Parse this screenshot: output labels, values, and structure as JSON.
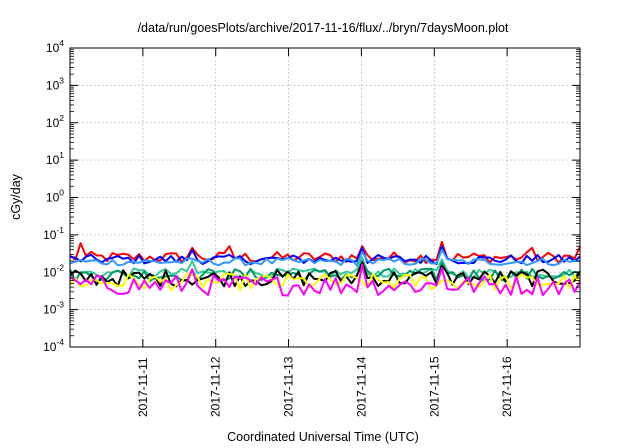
{
  "chart_data": {
    "type": "line",
    "title": "/data/run/goesPlots/archive/2017-11-16/flux/../bryn/7daysMoon.plot",
    "xlabel": "Coordinated Universal Time (UTC)",
    "ylabel": "cGy/day",
    "y_scale": "log",
    "ylim_exponent": [
      -4,
      4
    ],
    "y_ticks": [
      {
        "base": "10",
        "exp": "-4"
      },
      {
        "base": "10",
        "exp": "-3"
      },
      {
        "base": "10",
        "exp": "-2"
      },
      {
        "base": "10",
        "exp": "-1"
      },
      {
        "base": "10",
        "exp": "0"
      },
      {
        "base": "10",
        "exp": "1"
      },
      {
        "base": "10",
        "exp": "2"
      },
      {
        "base": "10",
        "exp": "3"
      },
      {
        "base": "10",
        "exp": "4"
      }
    ],
    "x_range_days": [
      "2017-11-10",
      "2017-11-17"
    ],
    "x_tick_labels": [
      "2017-11-11",
      "2017-11-12",
      "2017-11-13",
      "2017-11-14",
      "2017-11-15",
      "2017-11-16"
    ],
    "grid": true,
    "legend": "none",
    "samples_per_series": 97,
    "series": [
      {
        "color": "#ff0000",
        "level": 0.025,
        "jitter": 0.3,
        "spikes": [
          [
            2,
            0.06
          ],
          [
            23,
            0.045
          ],
          [
            30,
            0.05
          ],
          [
            55,
            0.05
          ],
          [
            70,
            0.065
          ],
          [
            87,
            0.045
          ],
          [
            96,
            0.05
          ]
        ]
      },
      {
        "color": "#0000ff",
        "level": 0.022,
        "jitter": 0.25,
        "spikes": [
          [
            23,
            0.04
          ],
          [
            55,
            0.045
          ],
          [
            70,
            0.05
          ]
        ]
      },
      {
        "color": "#3399ff",
        "level": 0.019,
        "jitter": 0.2,
        "spikes": [
          [
            55,
            0.035
          ],
          [
            70,
            0.04
          ]
        ]
      },
      {
        "color": "#33cc99",
        "level": 0.0095,
        "jitter": 0.25,
        "spikes": [
          [
            23,
            0.02
          ],
          [
            55,
            0.025
          ],
          [
            70,
            0.022
          ]
        ]
      },
      {
        "color": "#009966",
        "level": 0.0085,
        "jitter": 0.35,
        "spikes": [
          [
            55,
            0.02
          ],
          [
            70,
            0.018
          ]
        ]
      },
      {
        "color": "#000000",
        "level": 0.007,
        "jitter": 0.45,
        "spikes": [
          [
            55,
            0.018
          ],
          [
            70,
            0.015
          ]
        ]
      },
      {
        "color": "#ffff00",
        "level": 0.0055,
        "jitter": 0.45,
        "spikes": []
      },
      {
        "color": "#ff00ff",
        "level": 0.0045,
        "jitter": 0.55,
        "spikes": [
          [
            23,
            0.012
          ],
          [
            55,
            0.016
          ],
          [
            70,
            0.013
          ]
        ]
      }
    ]
  }
}
